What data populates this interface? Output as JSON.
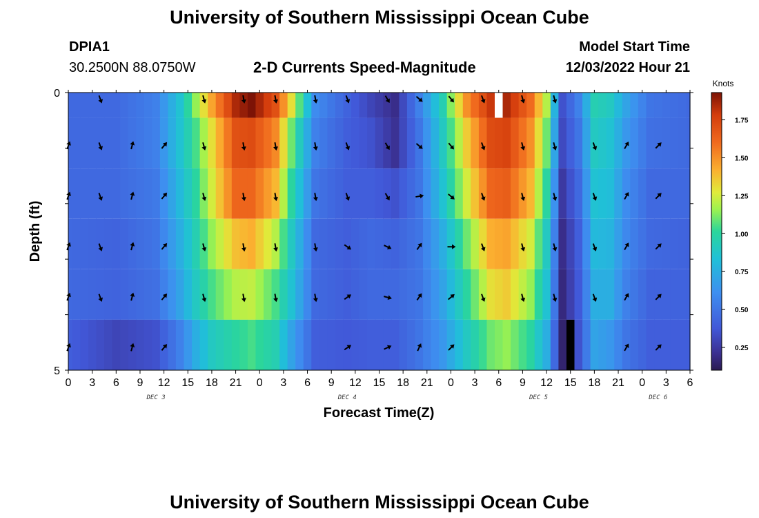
{
  "page": {
    "title": "University of Southern Mississippi Ocean Cube",
    "footer_title": "University of Southern Mississippi Ocean Cube",
    "station": "DPIA1",
    "coords": "30.2500N  88.0750W",
    "subtitle": "2-D Currents Speed-Magnitude",
    "model_label": "Model Start Time",
    "model_time": "12/03/2022 Hour 21"
  },
  "chart_data": {
    "type": "heatmap",
    "title": "2-D Currents Speed-Magnitude",
    "xlabel": "Forecast Time(Z)",
    "ylabel": "Depth (ft)",
    "x_hours": [
      0,
      3,
      6,
      9,
      12,
      15,
      18,
      21,
      24,
      27,
      30,
      33,
      36,
      39,
      42,
      45,
      48,
      51,
      54,
      57,
      60,
      63,
      66,
      69,
      72,
      75,
      78
    ],
    "x_tick_labels": [
      "0",
      "3",
      "6",
      "9",
      "12",
      "15",
      "18",
      "21",
      "0",
      "3",
      "6",
      "9",
      "12",
      "15",
      "18",
      "21",
      "0",
      "3",
      "6",
      "9",
      "12",
      "15",
      "18",
      "21",
      "0",
      "3",
      "6"
    ],
    "day_labels": [
      {
        "label": "DEC 3",
        "hour": 11
      },
      {
        "label": "DEC 4",
        "hour": 35
      },
      {
        "label": "DEC 5",
        "hour": 59
      },
      {
        "label": "DEC 6",
        "hour": 74
      }
    ],
    "y_tick_labels": [
      "0",
      "5"
    ],
    "ylim": [
      0,
      5
    ],
    "colorbar": {
      "unit": "Knots",
      "ticks": [
        "0.25",
        "0.50",
        "0.75",
        "1.00",
        "1.25",
        "1.50",
        "1.75"
      ],
      "min": 0.1,
      "max": 1.93
    },
    "speed_by_hour": [
      {
        "hour": 0,
        "values": [
          0.45,
          0.45,
          0.45,
          0.45,
          0.45,
          0.4
        ]
      },
      {
        "hour": 6,
        "values": [
          0.45,
          0.45,
          0.45,
          0.42,
          0.42,
          0.3
        ]
      },
      {
        "hour": 11,
        "values": [
          0.55,
          0.55,
          0.52,
          0.5,
          0.48,
          0.35
        ]
      },
      {
        "hour": 14,
        "values": [
          0.85,
          0.85,
          0.8,
          0.75,
          0.7,
          0.55
        ]
      },
      {
        "hour": 16,
        "values": [
          1.15,
          1.05,
          1.0,
          0.95,
          0.9,
          0.75
        ]
      },
      {
        "hour": 18,
        "values": [
          1.45,
          1.3,
          1.25,
          1.15,
          1.05,
          0.9
        ]
      },
      {
        "hour": 21,
        "values": [
          1.85,
          1.7,
          1.62,
          1.38,
          1.2,
          1.0
        ]
      },
      {
        "hour": 23,
        "values": [
          1.93,
          1.72,
          1.62,
          1.42,
          1.22,
          1.05
        ]
      },
      {
        "hour": 26,
        "values": [
          1.7,
          1.52,
          1.4,
          1.2,
          1.05,
          0.95
        ]
      },
      {
        "hour": 28,
        "values": [
          1.3,
          1.1,
          1.0,
          0.9,
          0.85,
          0.7
        ]
      },
      {
        "hour": 31,
        "values": [
          0.6,
          0.55,
          0.5,
          0.45,
          0.45,
          0.4
        ]
      },
      {
        "hour": 35,
        "values": [
          0.42,
          0.4,
          0.4,
          0.4,
          0.4,
          0.38
        ]
      },
      {
        "hour": 38,
        "values": [
          0.3,
          0.35,
          0.4,
          0.45,
          0.45,
          0.4
        ]
      },
      {
        "hour": 41,
        "values": [
          0.2,
          0.22,
          0.35,
          0.42,
          0.45,
          0.4
        ]
      },
      {
        "hour": 44,
        "values": [
          0.55,
          0.5,
          0.5,
          0.5,
          0.5,
          0.5
        ]
      },
      {
        "hour": 47,
        "values": [
          0.95,
          0.9,
          0.85,
          0.75,
          0.7,
          0.65
        ]
      },
      {
        "hour": 50,
        "values": [
          1.5,
          1.35,
          1.25,
          1.1,
          1.0,
          0.9
        ]
      },
      {
        "hour": 53,
        "values": [
          1.8,
          1.72,
          1.62,
          1.42,
          1.3,
          1.1
        ]
      },
      {
        "hour": 55,
        "values": [
          1.85,
          1.75,
          1.65,
          1.45,
          1.35,
          1.15
        ]
      },
      {
        "hour": 58,
        "values": [
          1.6,
          1.5,
          1.4,
          1.25,
          1.15,
          1.0
        ]
      },
      {
        "hour": 60,
        "values": [
          1.2,
          1.1,
          1.0,
          0.9,
          0.85,
          0.75
        ]
      },
      {
        "hour": 62,
        "values": [
          0.35,
          0.32,
          0.25,
          0.2,
          0.18,
          0.15
        ]
      },
      {
        "hour": 64,
        "values": [
          0.55,
          0.5,
          0.45,
          0.4,
          0.38,
          0.35
        ]
      },
      {
        "hour": 66,
        "values": [
          0.95,
          0.9,
          0.85,
          0.8,
          0.75,
          0.7
        ]
      },
      {
        "hour": 68,
        "values": [
          0.9,
          0.85,
          0.82,
          0.78,
          0.75,
          0.65
        ]
      },
      {
        "hour": 70,
        "values": [
          0.7,
          0.65,
          0.6,
          0.58,
          0.55,
          0.5
        ]
      },
      {
        "hour": 73,
        "values": [
          0.5,
          0.48,
          0.45,
          0.45,
          0.42,
          0.4
        ]
      },
      {
        "hour": 78,
        "values": [
          0.45,
          0.45,
          0.45,
          0.42,
          0.42,
          0.4
        ]
      }
    ],
    "missing_cells": [
      {
        "hour": 54,
        "depth_level": 0
      },
      {
        "hour": 63,
        "depth_level": 5
      }
    ],
    "arrows": [
      {
        "hour": 0,
        "depth_level": 1,
        "dir": 20
      },
      {
        "hour": 0,
        "depth_level": 2,
        "dir": 20
      },
      {
        "hour": 0,
        "depth_level": 3,
        "dir": 20
      },
      {
        "hour": 0,
        "depth_level": 4,
        "dir": 20
      },
      {
        "hour": 0,
        "depth_level": 5,
        "dir": 20
      },
      {
        "hour": 4,
        "depth_level": 0,
        "dir": 160
      },
      {
        "hour": 4,
        "depth_level": 1,
        "dir": 160
      },
      {
        "hour": 4,
        "depth_level": 2,
        "dir": 160
      },
      {
        "hour": 4,
        "depth_level": 3,
        "dir": 160
      },
      {
        "hour": 4,
        "depth_level": 4,
        "dir": 160
      },
      {
        "hour": 8,
        "depth_level": 1,
        "dir": 15
      },
      {
        "hour": 8,
        "depth_level": 2,
        "dir": 15
      },
      {
        "hour": 8,
        "depth_level": 3,
        "dir": 15
      },
      {
        "hour": 8,
        "depth_level": 4,
        "dir": 15
      },
      {
        "hour": 8,
        "depth_level": 5,
        "dir": 15
      },
      {
        "hour": 12,
        "depth_level": 1,
        "dir": 40
      },
      {
        "hour": 12,
        "depth_level": 2,
        "dir": 40
      },
      {
        "hour": 12,
        "depth_level": 3,
        "dir": 40
      },
      {
        "hour": 12,
        "depth_level": 4,
        "dir": 40
      },
      {
        "hour": 12,
        "depth_level": 5,
        "dir": 40
      },
      {
        "hour": 17,
        "depth_level": 0,
        "dir": 165
      },
      {
        "hour": 17,
        "depth_level": 1,
        "dir": 165
      },
      {
        "hour": 17,
        "depth_level": 2,
        "dir": 165
      },
      {
        "hour": 17,
        "depth_level": 3,
        "dir": 165
      },
      {
        "hour": 17,
        "depth_level": 4,
        "dir": 165
      },
      {
        "hour": 22,
        "depth_level": 0,
        "dir": 170
      },
      {
        "hour": 22,
        "depth_level": 1,
        "dir": 170
      },
      {
        "hour": 22,
        "depth_level": 2,
        "dir": 170
      },
      {
        "hour": 22,
        "depth_level": 3,
        "dir": 170
      },
      {
        "hour": 22,
        "depth_level": 4,
        "dir": 170
      },
      {
        "hour": 26,
        "depth_level": 0,
        "dir": 170
      },
      {
        "hour": 26,
        "depth_level": 1,
        "dir": 170
      },
      {
        "hour": 26,
        "depth_level": 2,
        "dir": 170
      },
      {
        "hour": 26,
        "depth_level": 3,
        "dir": 170
      },
      {
        "hour": 26,
        "depth_level": 4,
        "dir": 170
      },
      {
        "hour": 31,
        "depth_level": 0,
        "dir": 170
      },
      {
        "hour": 31,
        "depth_level": 1,
        "dir": 170
      },
      {
        "hour": 31,
        "depth_level": 2,
        "dir": 170
      },
      {
        "hour": 31,
        "depth_level": 3,
        "dir": 170
      },
      {
        "hour": 31,
        "depth_level": 4,
        "dir": 170
      },
      {
        "hour": 35,
        "depth_level": 0,
        "dir": 160
      },
      {
        "hour": 35,
        "depth_level": 1,
        "dir": 160
      },
      {
        "hour": 35,
        "depth_level": 2,
        "dir": 160
      },
      {
        "hour": 35,
        "depth_level": 3,
        "dir": 125
      },
      {
        "hour": 35,
        "depth_level": 4,
        "dir": 55
      },
      {
        "hour": 35,
        "depth_level": 5,
        "dir": 55
      },
      {
        "hour": 40,
        "depth_level": 0,
        "dir": 150
      },
      {
        "hour": 40,
        "depth_level": 1,
        "dir": 150
      },
      {
        "hour": 40,
        "depth_level": 2,
        "dir": 150
      },
      {
        "hour": 40,
        "depth_level": 3,
        "dir": 115
      },
      {
        "hour": 40,
        "depth_level": 4,
        "dir": 105
      },
      {
        "hour": 40,
        "depth_level": 5,
        "dir": 65
      },
      {
        "hour": 44,
        "depth_level": 0,
        "dir": 130
      },
      {
        "hour": 44,
        "depth_level": 1,
        "dir": 130
      },
      {
        "hour": 44,
        "depth_level": 2,
        "dir": 80
      },
      {
        "hour": 44,
        "depth_level": 3,
        "dir": 35
      },
      {
        "hour": 44,
        "depth_level": 4,
        "dir": 35
      },
      {
        "hour": 44,
        "depth_level": 5,
        "dir": 25
      },
      {
        "hour": 48,
        "depth_level": 0,
        "dir": 140
      },
      {
        "hour": 48,
        "depth_level": 1,
        "dir": 140
      },
      {
        "hour": 48,
        "depth_level": 2,
        "dir": 130
      },
      {
        "hour": 48,
        "depth_level": 3,
        "dir": 90
      },
      {
        "hour": 48,
        "depth_level": 4,
        "dir": 50
      },
      {
        "hour": 48,
        "depth_level": 5,
        "dir": 45
      },
      {
        "hour": 52,
        "depth_level": 0,
        "dir": 160
      },
      {
        "hour": 52,
        "depth_level": 1,
        "dir": 160
      },
      {
        "hour": 52,
        "depth_level": 2,
        "dir": 160
      },
      {
        "hour": 52,
        "depth_level": 3,
        "dir": 160
      },
      {
        "hour": 52,
        "depth_level": 4,
        "dir": 160
      },
      {
        "hour": 57,
        "depth_level": 0,
        "dir": 165
      },
      {
        "hour": 57,
        "depth_level": 1,
        "dir": 165
      },
      {
        "hour": 57,
        "depth_level": 2,
        "dir": 165
      },
      {
        "hour": 57,
        "depth_level": 3,
        "dir": 165
      },
      {
        "hour": 57,
        "depth_level": 4,
        "dir": 165
      },
      {
        "hour": 61,
        "depth_level": 0,
        "dir": 165
      },
      {
        "hour": 61,
        "depth_level": 1,
        "dir": 165
      },
      {
        "hour": 61,
        "depth_level": 2,
        "dir": 165
      },
      {
        "hour": 61,
        "depth_level": 3,
        "dir": 165
      },
      {
        "hour": 61,
        "depth_level": 4,
        "dir": 165
      },
      {
        "hour": 66,
        "depth_level": 1,
        "dir": 160
      },
      {
        "hour": 66,
        "depth_level": 2,
        "dir": 160
      },
      {
        "hour": 66,
        "depth_level": 3,
        "dir": 160
      },
      {
        "hour": 66,
        "depth_level": 4,
        "dir": 160
      },
      {
        "hour": 70,
        "depth_level": 1,
        "dir": 30
      },
      {
        "hour": 70,
        "depth_level": 2,
        "dir": 30
      },
      {
        "hour": 70,
        "depth_level": 3,
        "dir": 30
      },
      {
        "hour": 70,
        "depth_level": 4,
        "dir": 30
      },
      {
        "hour": 70,
        "depth_level": 5,
        "dir": 30
      },
      {
        "hour": 74,
        "depth_level": 1,
        "dir": 45
      },
      {
        "hour": 74,
        "depth_level": 2,
        "dir": 45
      },
      {
        "hour": 74,
        "depth_level": 3,
        "dir": 45
      },
      {
        "hour": 74,
        "depth_level": 4,
        "dir": 45
      },
      {
        "hour": 74,
        "depth_level": 5,
        "dir": 45
      }
    ]
  }
}
